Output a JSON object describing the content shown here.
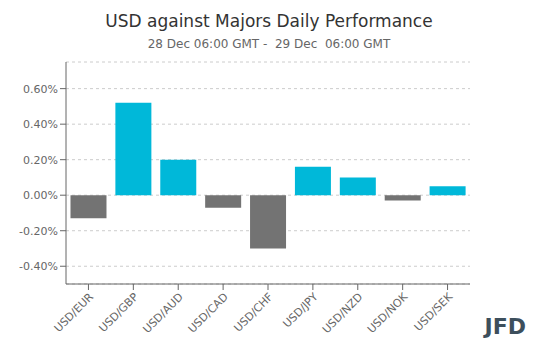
{
  "chart_data": {
    "type": "bar",
    "title": "USD against Majors Daily Performance",
    "subtitle": "28 Dec 06:00 GMT -  29 Dec  06:00 GMT",
    "annotations": [
      "JFD"
    ],
    "categories": [
      "USD/EUR",
      "USD/GBP",
      "USD/AUD",
      "USD/CAD",
      "USD/CHF",
      "USD/JPY",
      "USD/NZD",
      "USD/NOK",
      "USD/SEK"
    ],
    "values": [
      -0.0013,
      0.0052,
      0.002,
      -0.0007,
      -0.003,
      0.0016,
      0.001,
      -0.0003,
      0.0005
    ],
    "colors": [
      "#737373",
      "#00b8d9",
      "#00b8d9",
      "#737373",
      "#737373",
      "#00b8d9",
      "#00b8d9",
      "#737373",
      "#00b8d9"
    ],
    "ylim": [
      -0.005,
      0.0075
    ],
    "yticks": [
      {
        "value": -0.004,
        "label": "-0.40%"
      },
      {
        "value": -0.002,
        "label": "-0.20%"
      },
      {
        "value": 0.0,
        "label": "0.00%"
      },
      {
        "value": 0.002,
        "label": "0.20%"
      },
      {
        "value": 0.004,
        "label": "0.40%"
      },
      {
        "value": 0.006,
        "label": "0.60%"
      }
    ],
    "grid": true
  }
}
